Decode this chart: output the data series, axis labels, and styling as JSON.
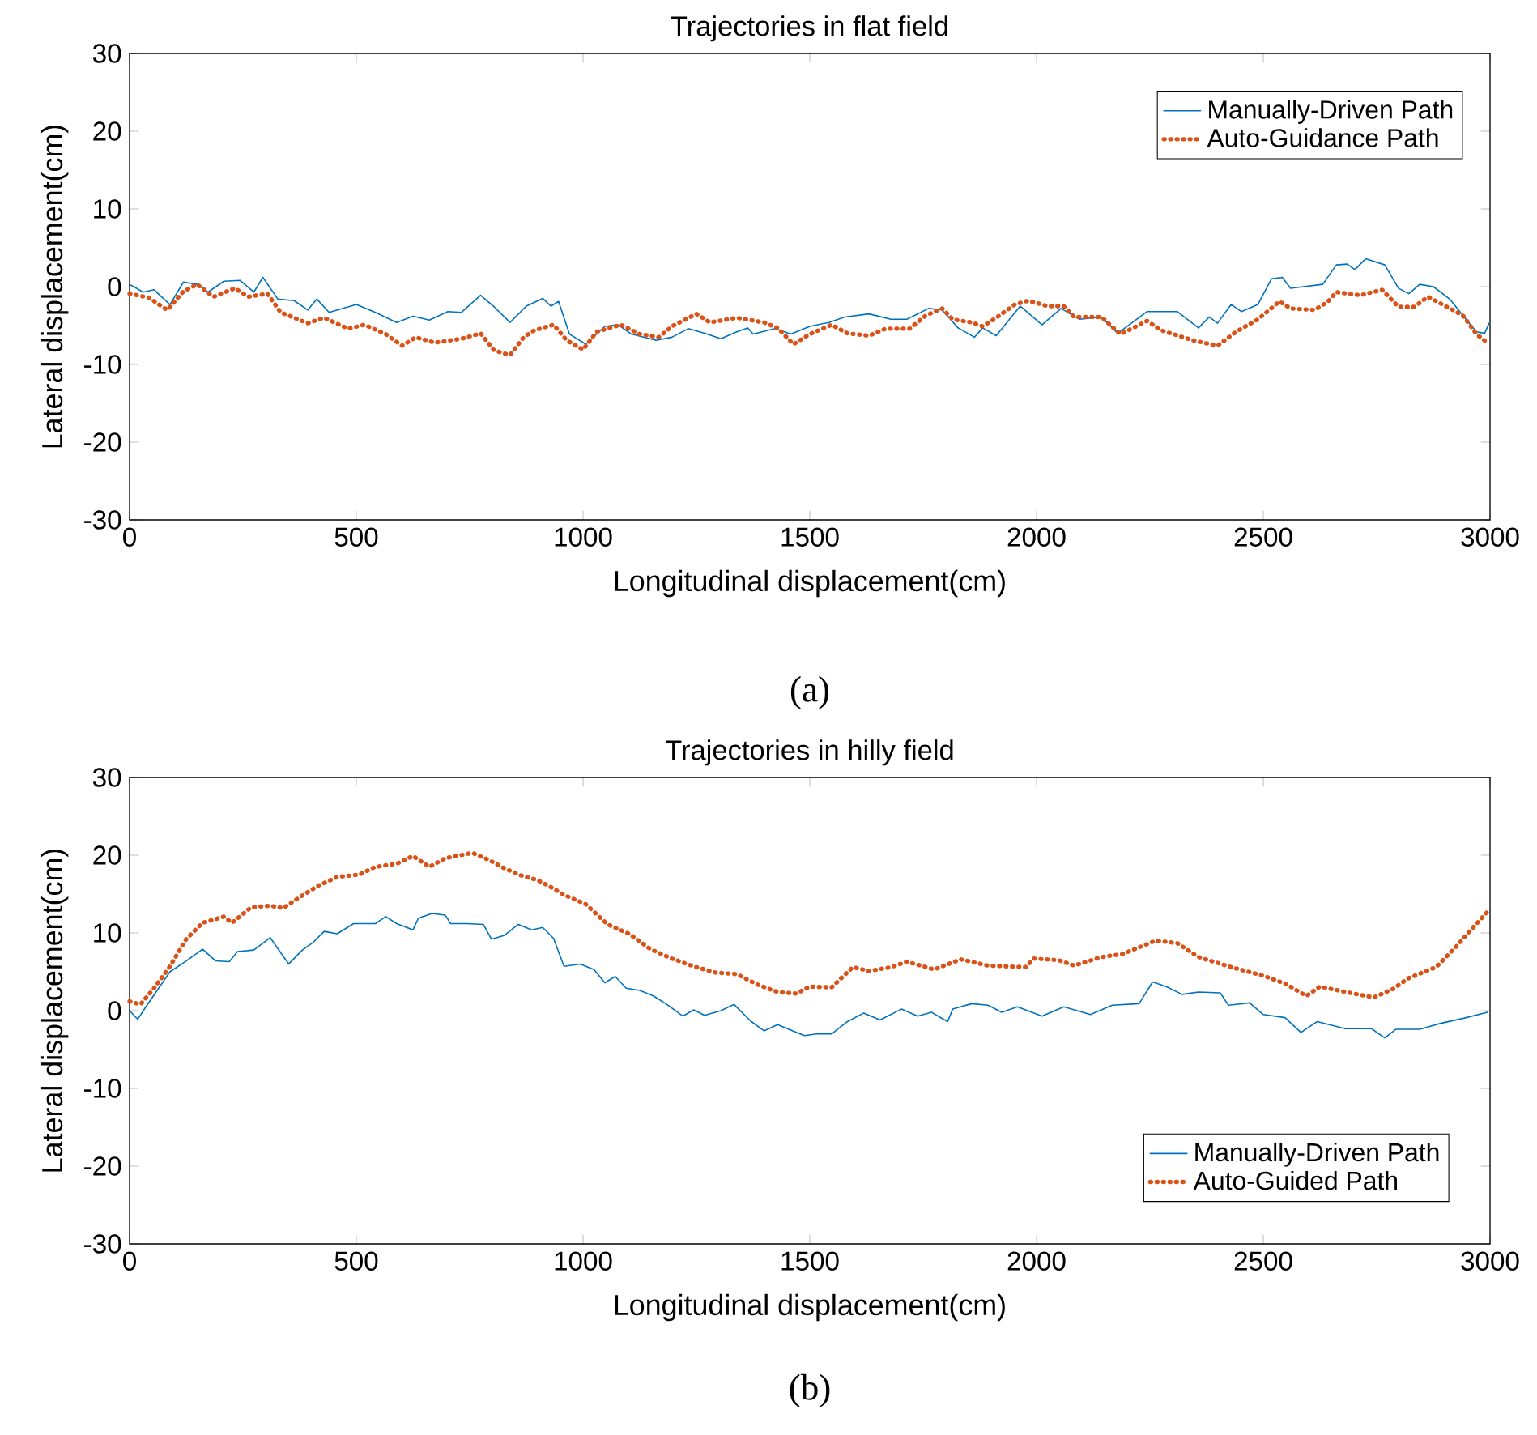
{
  "chart_data": [
    {
      "type": "line",
      "title": "Trajectories in flat field",
      "xlabel": "Longitudinal displacement(cm)",
      "ylabel": "Lateral displacement(cm)",
      "annotations": [
        "(a)"
      ],
      "xlim": [
        0,
        3000
      ],
      "ylim": [
        -30,
        30
      ],
      "xticks": [
        0,
        500,
        1000,
        1500,
        2000,
        2500,
        3000
      ],
      "yticks": [
        -30,
        -20,
        -10,
        0,
        10,
        20,
        30
      ],
      "grid": false,
      "legend": "top right",
      "marker": "none",
      "series": [
        {
          "name": "Manually-Driven Path",
          "color": "#0072bd",
          "line_style": "solid",
          "x": [
            0,
            30,
            54,
            89,
            119,
            149,
            173,
            208,
            244,
            274,
            294,
            327,
            363,
            393,
            413,
            440,
            500,
            542,
            589,
            625,
            661,
            702,
            732,
            774,
            804,
            839,
            875,
            911,
            929,
            946,
            970,
            1006,
            1048,
            1077,
            1107,
            1161,
            1196,
            1232,
            1268,
            1304,
            1339,
            1363,
            1375,
            1423,
            1458,
            1500,
            1542,
            1577,
            1631,
            1679,
            1714,
            1762,
            1792,
            1827,
            1863,
            1881,
            1911,
            1964,
            2012,
            2054,
            2095,
            2143,
            2179,
            2244,
            2310,
            2357,
            2381,
            2399,
            2429,
            2452,
            2488,
            2518,
            2542,
            2560,
            2631,
            2661,
            2685,
            2702,
            2726,
            2768,
            2798,
            2821,
            2845,
            2875,
            2911,
            2940,
            2970,
            2988,
            2998
          ],
          "values": [
            0.3,
            -0.7,
            -0.4,
            -2.3,
            0.6,
            0.3,
            -0.7,
            0.7,
            0.8,
            -0.7,
            1.2,
            -1.6,
            -1.8,
            -3.0,
            -1.6,
            -3.3,
            -2.3,
            -3.3,
            -4.6,
            -3.8,
            -4.3,
            -3.2,
            -3.3,
            -1.1,
            -2.6,
            -4.6,
            -2.5,
            -1.5,
            -2.5,
            -1.9,
            -6.1,
            -7.4,
            -5.1,
            -4.9,
            -6.1,
            -6.9,
            -6.5,
            -5.4,
            -6.0,
            -6.7,
            -5.8,
            -5.3,
            -6.1,
            -5.4,
            -6.1,
            -5.1,
            -4.6,
            -3.9,
            -3.5,
            -4.2,
            -4.2,
            -2.8,
            -3.0,
            -5.3,
            -6.5,
            -5.3,
            -6.3,
            -2.5,
            -4.9,
            -2.8,
            -4.2,
            -3.9,
            -6.0,
            -3.2,
            -3.2,
            -5.3,
            -3.9,
            -4.7,
            -2.3,
            -3.2,
            -2.3,
            1.0,
            1.2,
            -0.2,
            0.3,
            2.8,
            2.9,
            2.2,
            3.6,
            2.8,
            -0.2,
            -0.9,
            0.3,
            0,
            -1.6,
            -3.7,
            -5.8,
            -6.0,
            -4.7
          ]
        },
        {
          "name": "Auto-Guidance Path",
          "color": "#d95319",
          "line_style": "dotted",
          "x": [
            0,
            42,
            83,
            119,
            149,
            185,
            232,
            262,
            304,
            333,
            393,
            429,
            482,
            518,
            565,
            601,
            631,
            673,
            732,
            774,
            804,
            839,
            869,
            893,
            935,
            964,
            1000,
            1030,
            1083,
            1125,
            1167,
            1196,
            1250,
            1280,
            1339,
            1399,
            1429,
            1464,
            1500,
            1548,
            1583,
            1631,
            1667,
            1720,
            1756,
            1792,
            1815,
            1857,
            1881,
            1911,
            1952,
            1982,
            2024,
            2060,
            2083,
            2143,
            2185,
            2244,
            2274,
            2345,
            2399,
            2440,
            2488,
            2536,
            2560,
            2613,
            2643,
            2661,
            2714,
            2762,
            2798,
            2833,
            2863,
            2905,
            2940,
            2970,
            2994
          ],
          "values": [
            -0.9,
            -1.4,
            -3.0,
            -0.6,
            0.3,
            -1.3,
            -0.2,
            -1.3,
            -0.9,
            -3.3,
            -4.7,
            -4.0,
            -5.4,
            -4.9,
            -6.1,
            -7.6,
            -6.5,
            -7.2,
            -6.7,
            -6.0,
            -8.2,
            -8.8,
            -6.5,
            -5.6,
            -4.9,
            -6.9,
            -8.1,
            -5.8,
            -4.9,
            -6.1,
            -6.5,
            -5.1,
            -3.5,
            -4.6,
            -4.0,
            -4.6,
            -5.3,
            -7.4,
            -6.1,
            -4.9,
            -6.0,
            -6.3,
            -5.4,
            -5.4,
            -3.7,
            -2.8,
            -4.2,
            -4.6,
            -5.1,
            -4.0,
            -2.3,
            -1.8,
            -2.5,
            -2.5,
            -3.9,
            -3.9,
            -6.1,
            -4.4,
            -5.6,
            -6.9,
            -7.6,
            -5.8,
            -4.2,
            -1.9,
            -2.8,
            -3.0,
            -1.9,
            -0.7,
            -1.1,
            -0.4,
            -2.6,
            -2.6,
            -1.3,
            -2.6,
            -3.7,
            -6.1,
            -7.2
          ]
        }
      ]
    },
    {
      "type": "line",
      "title": "Trajectories in hilly field",
      "xlabel": "Longitudinal displacement(cm)",
      "ylabel": "Lateral displacement(cm)",
      "annotations": [
        "(b)"
      ],
      "xlim": [
        0,
        3000
      ],
      "ylim": [
        -30,
        30
      ],
      "xticks": [
        0,
        500,
        1000,
        1500,
        2000,
        2500,
        3000
      ],
      "yticks": [
        -30,
        -20,
        -10,
        0,
        10,
        20,
        30
      ],
      "grid": false,
      "legend": "bottom right",
      "marker": "none",
      "series": [
        {
          "name": "Manually-Driven Path",
          "color": "#0072bd",
          "line_style": "solid",
          "x": [
            0,
            18,
            36,
            89,
            125,
            161,
            190,
            220,
            238,
            274,
            310,
            351,
            381,
            405,
            429,
            458,
            494,
            542,
            565,
            589,
            625,
            637,
            667,
            696,
            708,
            744,
            780,
            798,
            827,
            857,
            887,
            911,
            935,
            958,
            994,
            1024,
            1048,
            1071,
            1095,
            1125,
            1155,
            1185,
            1220,
            1244,
            1268,
            1304,
            1333,
            1369,
            1399,
            1429,
            1458,
            1488,
            1515,
            1548,
            1583,
            1619,
            1655,
            1702,
            1738,
            1768,
            1804,
            1815,
            1857,
            1893,
            1923,
            1958,
            2012,
            2060,
            2119,
            2167,
            2226,
            2256,
            2286,
            2321,
            2357,
            2405,
            2423,
            2470,
            2500,
            2548,
            2583,
            2619,
            2679,
            2738,
            2768,
            2792,
            2845,
            2893,
            2940,
            2994
          ],
          "values": [
            0,
            -1.1,
            0.5,
            5.0,
            6.4,
            7.9,
            6.4,
            6.3,
            7.6,
            7.8,
            9.4,
            6.0,
            7.8,
            8.8,
            10.2,
            9.9,
            11.2,
            11.2,
            12.1,
            11.2,
            10.4,
            11.9,
            12.5,
            12.3,
            11.2,
            11.2,
            11.1,
            9.2,
            9.7,
            11.1,
            10.4,
            10.7,
            9.3,
            5.7,
            6.0,
            5.3,
            3.6,
            4.4,
            2.9,
            2.6,
            1.9,
            0.8,
            -0.7,
            0.1,
            -0.6,
            0,
            0.8,
            -1.3,
            -2.6,
            -1.8,
            -2.5,
            -3.2,
            -3.0,
            -3.0,
            -1.4,
            -0.3,
            -1.2,
            0.2,
            -0.7,
            -0.2,
            -1.4,
            0.2,
            0.9,
            0.7,
            -0.2,
            0.5,
            -0.7,
            0.5,
            -0.5,
            0.7,
            0.9,
            3.7,
            3.1,
            2.1,
            2.4,
            2.3,
            0.7,
            1.0,
            -0.5,
            -0.9,
            -2.8,
            -1.4,
            -2.3,
            -2.3,
            -3.5,
            -2.4,
            -2.4,
            -1.6,
            -1.0,
            -0.2
          ]
        },
        {
          "name": "Auto-Guided Path",
          "color": "#d95319",
          "line_style": "dotted",
          "x": [
            0,
            24,
            54,
            89,
            125,
            161,
            208,
            226,
            268,
            310,
            339,
            375,
            417,
            458,
            506,
            542,
            589,
            625,
            661,
            696,
            756,
            792,
            827,
            863,
            899,
            923,
            958,
            1006,
            1054,
            1101,
            1149,
            1196,
            1244,
            1292,
            1339,
            1387,
            1429,
            1470,
            1500,
            1548,
            1595,
            1631,
            1679,
            1714,
            1774,
            1833,
            1893,
            1976,
            1994,
            2048,
            2083,
            2143,
            2190,
            2262,
            2310,
            2357,
            2429,
            2500,
            2548,
            2595,
            2625,
            2690,
            2744,
            2786,
            2821,
            2881,
            2923,
            2958,
            2994
          ],
          "values": [
            1.2,
            0.8,
            2.9,
            5.7,
            9.2,
            11.3,
            12.1,
            11.3,
            13.3,
            13.5,
            13.2,
            14.6,
            16.1,
            17.2,
            17.5,
            18.5,
            18.9,
            19.9,
            18.5,
            19.6,
            20.3,
            19.4,
            18.3,
            17.4,
            16.8,
            16.1,
            14.9,
            13.7,
            11.1,
            9.9,
            7.9,
            6.7,
            5.7,
            4.9,
            4.7,
            3.3,
            2.4,
            2.2,
            3.1,
            3.0,
            5.6,
            5.1,
            5.6,
            6.3,
            5.3,
            6.6,
            5.8,
            5.6,
            6.7,
            6.5,
            5.8,
            6.9,
            7.3,
            9.0,
            8.7,
            6.9,
            5.6,
            4.5,
            3.5,
            1.9,
            3.1,
            2.3,
            1.7,
            2.8,
            4.2,
            5.6,
            8.1,
            10.4,
            12.7
          ]
        }
      ]
    }
  ]
}
